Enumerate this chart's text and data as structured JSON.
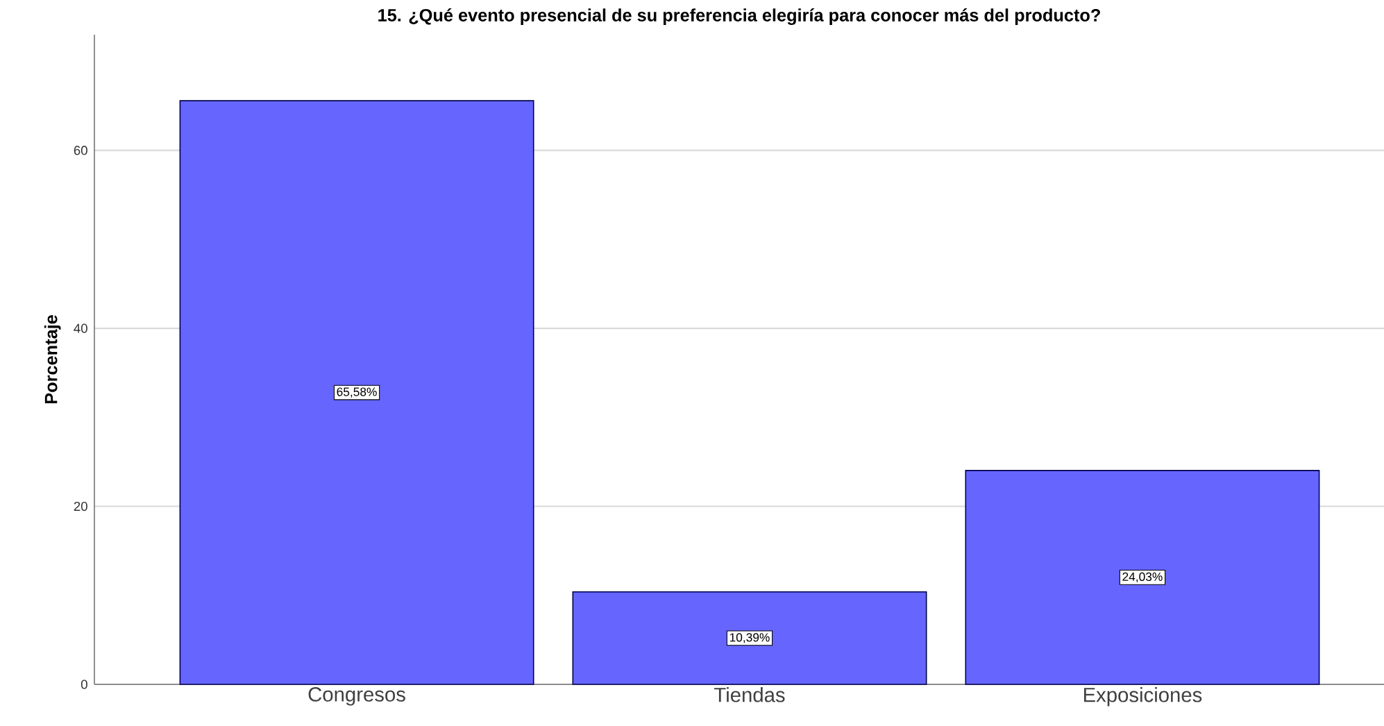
{
  "chart_data": {
    "type": "bar",
    "title": "15. ¿Qué evento presencial de su preferencia elegiría para conocer más del producto?",
    "ylabel": "Porcentaje",
    "categories": [
      "Congresos",
      "Tiendas",
      "Exposiciones"
    ],
    "values": [
      65.58,
      10.39,
      24.03
    ],
    "value_labels": [
      "65,58%",
      "10,39%",
      "24,03%"
    ],
    "color": "#6666ff",
    "ylim": [
      0,
      73
    ],
    "yticks": [
      0,
      20,
      40,
      60
    ],
    "grid": "y"
  }
}
